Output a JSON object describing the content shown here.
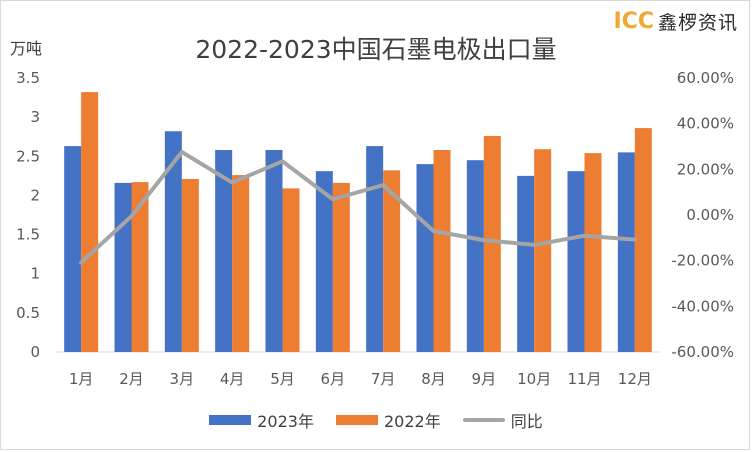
{
  "chart_data": {
    "type": "bar",
    "title": "2022-2023中国石墨电极出口量",
    "ylabel": "万吨",
    "categories": [
      "1月",
      "2月",
      "3月",
      "4月",
      "5月",
      "6月",
      "7月",
      "8月",
      "9月",
      "10月",
      "11月",
      "12月"
    ],
    "series": [
      {
        "name": "2023年",
        "type": "bar",
        "axis": "left",
        "color": "#4472c4",
        "values": [
          2.63,
          2.16,
          2.82,
          2.58,
          2.58,
          2.31,
          2.63,
          2.4,
          2.45,
          2.25,
          2.31,
          2.55
        ]
      },
      {
        "name": "2022年",
        "type": "bar",
        "axis": "left",
        "color": "#ed7d31",
        "values": [
          3.32,
          2.17,
          2.21,
          2.26,
          2.09,
          2.16,
          2.32,
          2.58,
          2.76,
          2.59,
          2.54,
          2.86
        ]
      },
      {
        "name": "同比",
        "type": "line",
        "axis": "right",
        "color": "#a5a5a5",
        "values": [
          -20.8,
          -0.5,
          27.6,
          14.2,
          23.5,
          6.9,
          13.1,
          -7.0,
          -11.0,
          -13.1,
          -9.1,
          -10.8
        ]
      }
    ],
    "ylim": [
      0,
      3.5
    ],
    "yticks": [
      "0",
      "0.5",
      "1",
      "1.5",
      "2",
      "2.5",
      "3",
      "3.5"
    ],
    "y2lim": [
      -60,
      60
    ],
    "y2ticks": [
      "-60.00%",
      "-40.00%",
      "-20.00%",
      "0.00%",
      "20.00%",
      "40.00%",
      "60.00%"
    ],
    "grid": false,
    "legend": "bottom"
  },
  "logo": {
    "mark": "ICC",
    "name": "鑫椤资讯"
  }
}
